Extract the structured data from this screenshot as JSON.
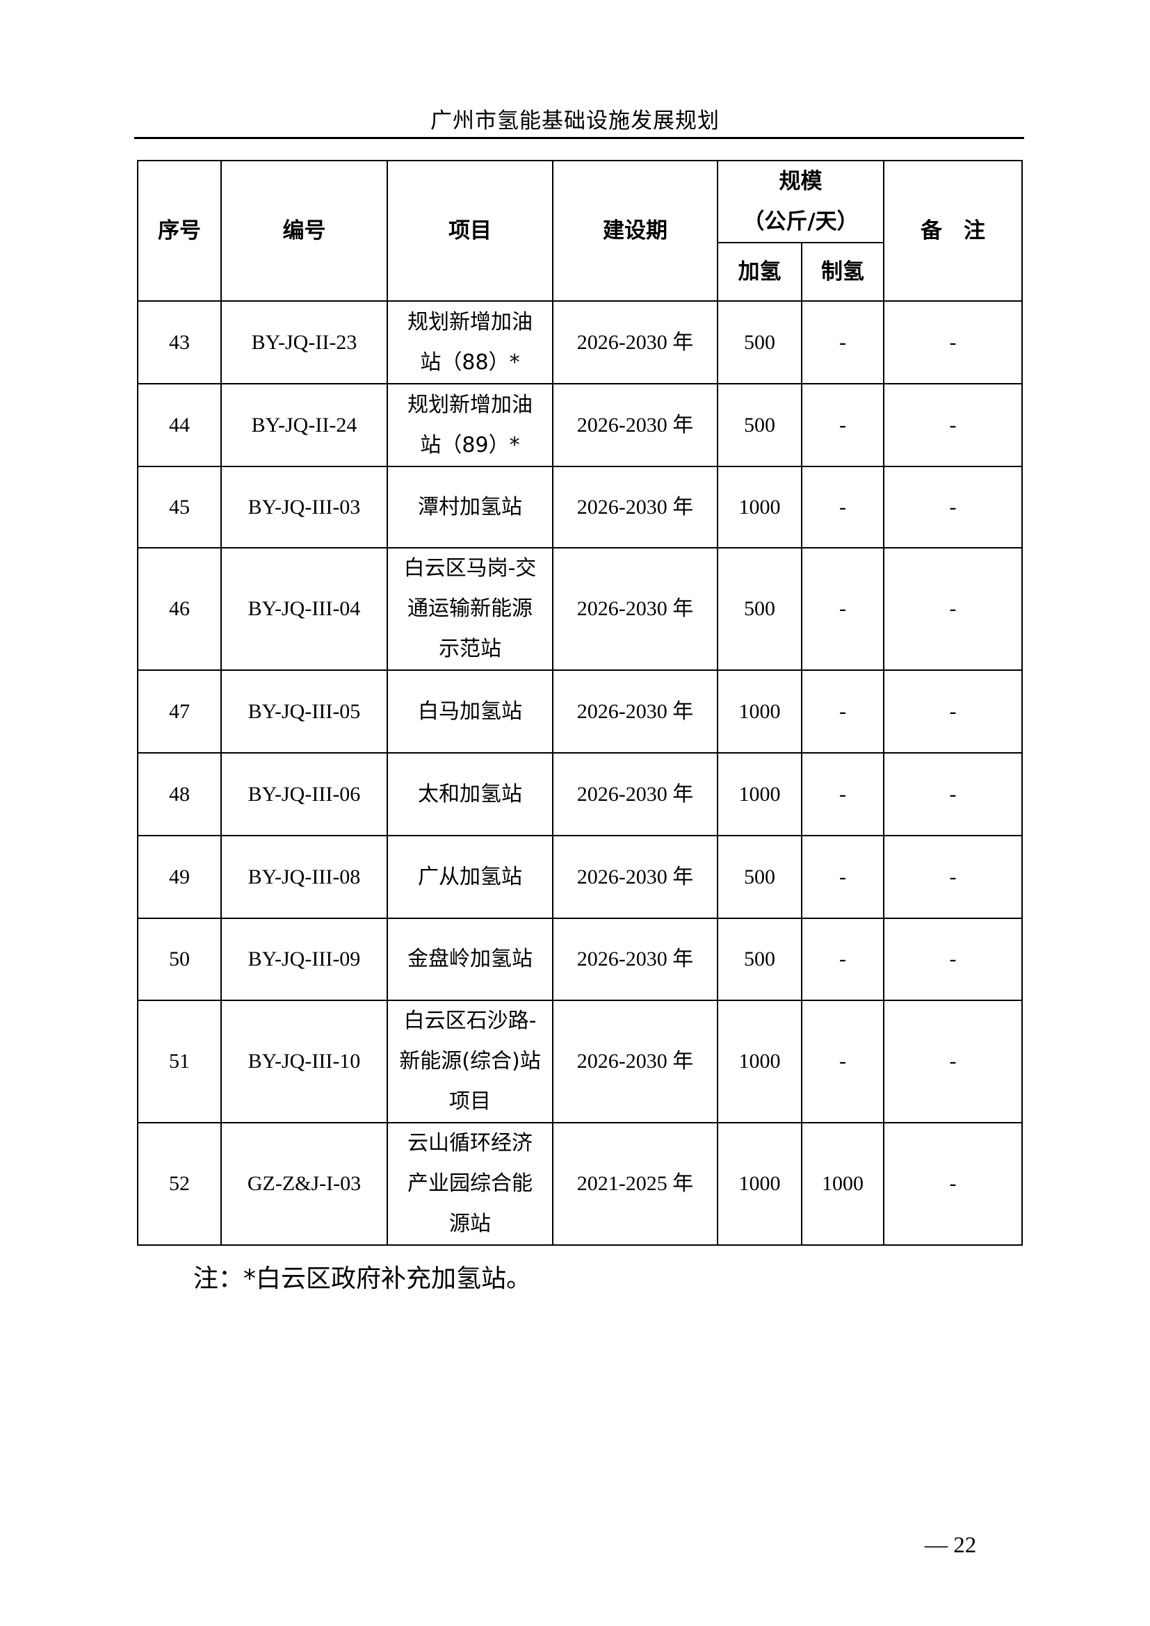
{
  "running_title": "广州市氢能基础设施发展规划",
  "table": {
    "headers": {
      "index": "序号",
      "code": "编号",
      "project": "项目",
      "period": "建设期",
      "scale": "规模",
      "scale_unit": "（公斤/天）",
      "refuel": "加氢",
      "produce": "制氢",
      "remark": "备　注"
    },
    "rows": [
      {
        "index": "43",
        "code": "BY-JQ-II-23",
        "project": "规划新增加油站（88）*",
        "period": "2026-2030 年",
        "refuel": "500",
        "produce": "-",
        "remark": "-"
      },
      {
        "index": "44",
        "code": "BY-JQ-II-24",
        "project": "规划新增加油站（89）*",
        "period": "2026-2030 年",
        "refuel": "500",
        "produce": "-",
        "remark": "-"
      },
      {
        "index": "45",
        "code": "BY-JQ-III-03",
        "project": "潭村加氢站",
        "period": "2026-2030 年",
        "refuel": "1000",
        "produce": "-",
        "remark": "-"
      },
      {
        "index": "46",
        "code": "BY-JQ-III-04",
        "project": "白云区马岗-交通运输新能源示范站",
        "period": "2026-2030 年",
        "refuel": "500",
        "produce": "-",
        "remark": "-"
      },
      {
        "index": "47",
        "code": "BY-JQ-III-05",
        "project": "白马加氢站",
        "period": "2026-2030 年",
        "refuel": "1000",
        "produce": "-",
        "remark": "-"
      },
      {
        "index": "48",
        "code": "BY-JQ-III-06",
        "project": "太和加氢站",
        "period": "2026-2030 年",
        "refuel": "1000",
        "produce": "-",
        "remark": "-"
      },
      {
        "index": "49",
        "code": "BY-JQ-III-08",
        "project": "广从加氢站",
        "period": "2026-2030 年",
        "refuel": "500",
        "produce": "-",
        "remark": "-"
      },
      {
        "index": "50",
        "code": "BY-JQ-III-09",
        "project": "金盘岭加氢站",
        "period": "2026-2030 年",
        "refuel": "500",
        "produce": "-",
        "remark": "-"
      },
      {
        "index": "51",
        "code": "BY-JQ-III-10",
        "project": "白云区石沙路-新能源(综合)站项目",
        "period": "2026-2030 年",
        "refuel": "1000",
        "produce": "-",
        "remark": "-"
      },
      {
        "index": "52",
        "code": "GZ-Z&J-I-03",
        "project": "云山循环经济产业园综合能源站",
        "period": "2021-2025 年",
        "refuel": "1000",
        "produce": "1000",
        "remark": "-"
      }
    ]
  },
  "note": "注：*白云区政府补充加氢站。",
  "page_number": "— 22"
}
